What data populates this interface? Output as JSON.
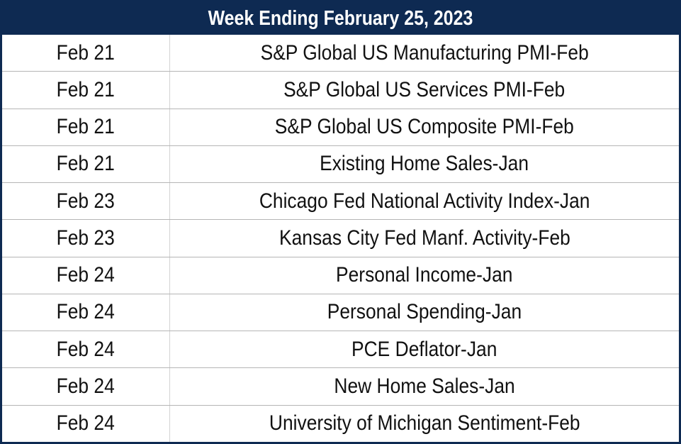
{
  "title": "Week Ending February 25, 2023",
  "colors": {
    "header_background": "#0e2a52",
    "header_text": "#ffffff",
    "row_background": "#ffffff",
    "text": "#111111"
  },
  "rows": [
    {
      "date": "Feb 21",
      "event": "S&P Global US Manufacturing PMI-Feb"
    },
    {
      "date": "Feb 21",
      "event": "S&P Global US Services PMI-Feb"
    },
    {
      "date": "Feb 21",
      "event": "S&P Global US Composite PMI-Feb"
    },
    {
      "date": "Feb 21",
      "event": "Existing Home Sales-Jan"
    },
    {
      "date": "Feb 23",
      "event": "Chicago Fed National Activity Index-Jan"
    },
    {
      "date": "Feb 23",
      "event": "Kansas City Fed Manf. Activity-Feb"
    },
    {
      "date": "Feb 24",
      "event": "Personal Income-Jan"
    },
    {
      "date": "Feb 24",
      "event": "Personal Spending-Jan"
    },
    {
      "date": "Feb 24",
      "event": "PCE Deflator-Jan"
    },
    {
      "date": "Feb 24",
      "event": "New Home Sales-Jan"
    },
    {
      "date": "Feb 24",
      "event": "University of Michigan Sentiment-Feb"
    }
  ]
}
